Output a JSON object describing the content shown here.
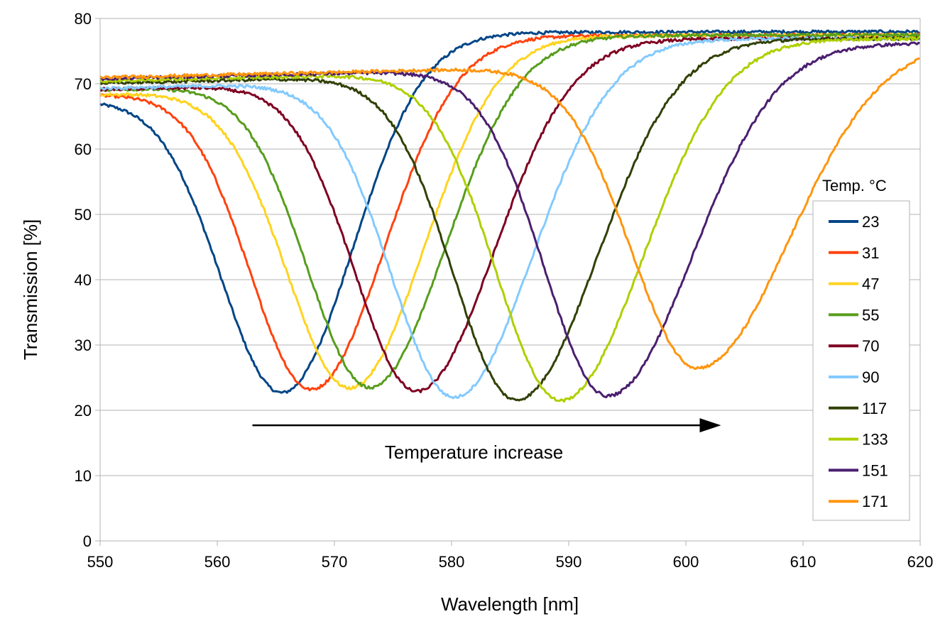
{
  "chart_data": {
    "type": "line",
    "title": "",
    "xlabel": "Wavelength [nm]",
    "ylabel": "Transmission [%]",
    "xlim": [
      550,
      620
    ],
    "ylim": [
      0,
      80
    ],
    "xticks": [
      550,
      560,
      570,
      580,
      590,
      600,
      610,
      620
    ],
    "yticks": [
      0,
      10,
      20,
      30,
      40,
      50,
      60,
      70,
      80
    ],
    "grid": true,
    "legend": {
      "title": "Temp. °C",
      "position": "right"
    },
    "annotation": {
      "text": "Temperature increase",
      "arrow_from_x": 563,
      "arrow_to_x": 603,
      "arrow_y": 17.7
    },
    "series": [
      {
        "name": "23",
        "color": "#004586",
        "center": 565.5,
        "min": 22.7,
        "left_base": 68.0,
        "right_base": 78.0,
        "left_width": 5.2,
        "right_width": 6.0
      },
      {
        "name": "31",
        "color": "#ff420e",
        "center": 568.0,
        "min": 23.2,
        "left_base": 69.0,
        "right_base": 77.5,
        "left_width": 5.2,
        "right_width": 6.2
      },
      {
        "name": "47",
        "color": "#ffd320",
        "center": 571.3,
        "min": 23.4,
        "left_base": 69.2,
        "right_base": 77.5,
        "left_width": 5.4,
        "right_width": 6.3
      },
      {
        "name": "55",
        "color": "#579d1c",
        "center": 573.0,
        "min": 23.5,
        "left_base": 70.0,
        "right_base": 77.5,
        "left_width": 5.3,
        "right_width": 6.4
      },
      {
        "name": "70",
        "color": "#7e0021",
        "center": 577.0,
        "min": 22.9,
        "left_base": 70.2,
        "right_base": 77.0,
        "left_width": 5.3,
        "right_width": 6.6
      },
      {
        "name": "90",
        "color": "#83caff",
        "center": 580.2,
        "min": 22.0,
        "left_base": 70.5,
        "right_base": 77.0,
        "left_width": 5.4,
        "right_width": 6.7
      },
      {
        "name": "117",
        "color": "#314004",
        "center": 585.5,
        "min": 21.6,
        "left_base": 71.5,
        "right_base": 77.0,
        "left_width": 5.4,
        "right_width": 6.9
      },
      {
        "name": "133",
        "color": "#aecf00",
        "center": 589.3,
        "min": 21.5,
        "left_base": 72.0,
        "right_base": 77.0,
        "left_width": 5.5,
        "right_width": 7.0
      },
      {
        "name": "151",
        "color": "#4b1f6f",
        "center": 593.3,
        "min": 22.2,
        "left_base": 72.5,
        "right_base": 76.3,
        "left_width": 5.4,
        "right_width": 7.2
      },
      {
        "name": "171",
        "color": "#ff950e",
        "center": 601.0,
        "min": 26.5,
        "left_base": 73.0,
        "right_base": 76.5,
        "left_width": 5.7,
        "right_width": 7.8
      }
    ]
  }
}
